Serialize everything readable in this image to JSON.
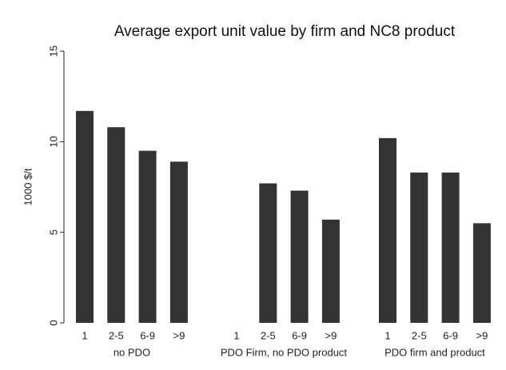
{
  "chart_data": {
    "type": "bar",
    "title": "Average export unit value by firm and NC8 product",
    "y_label": "1000 $/t",
    "color": "#333333",
    "ylim": [
      0,
      15
    ],
    "yticks": [
      0,
      5,
      10,
      15
    ],
    "groups": [
      {
        "name": "no PDO",
        "categories": [
          "1",
          "2-5",
          "6-9",
          ">9"
        ],
        "values": [
          11.7,
          10.8,
          9.5,
          8.9
        ]
      },
      {
        "name": "PDO Firm, no PDO product",
        "categories": [
          "1",
          "2-5",
          "6-9",
          ">9"
        ],
        "values": [
          null,
          7.7,
          7.3,
          5.7
        ]
      },
      {
        "name": "PDO firm and product",
        "categories": [
          "1",
          "2-5",
          "6-9",
          ">9"
        ],
        "values": [
          10.2,
          8.3,
          8.3,
          5.5
        ]
      }
    ]
  }
}
